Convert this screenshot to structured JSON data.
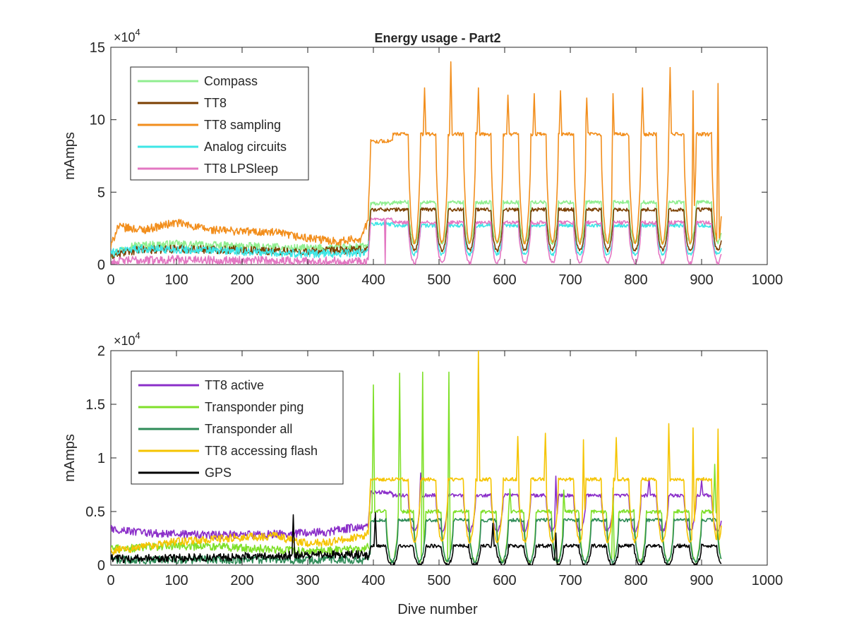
{
  "figure": {
    "title": "Energy usage - Part2",
    "xlabel": "Dive number"
  },
  "chart_data": [
    {
      "type": "line",
      "title": "Energy usage - Part2",
      "xlabel": "",
      "ylabel": "mAmps",
      "xlim": [
        0,
        1000
      ],
      "ylim": [
        0,
        150000
      ],
      "x_ticks": [
        "0",
        "100",
        "200",
        "300",
        "400",
        "500",
        "600",
        "700",
        "800",
        "900",
        "1000"
      ],
      "y_ticks": [
        "0",
        "5",
        "10",
        "15"
      ],
      "y_exponent": "4",
      "grid": false,
      "legend_position": "top-left",
      "series": [
        {
          "name": "Compass",
          "color": "#90ee90",
          "profile": {
            "x": [
              0,
              30,
              100,
              200,
              300,
              380,
              392,
              396,
              930
            ],
            "y": [
              7000,
              13000,
              14000,
              12500,
              11000,
              12000,
              12500,
              42000,
              45000
            ]
          },
          "oscillation": {
            "start": 396,
            "end": 930,
            "period": 42,
            "low": 15000,
            "high": 43000,
            "dip_start": 430
          }
        },
        {
          "name": "TT8",
          "color": "#7b3f00",
          "profile": {
            "x": [
              0,
              30,
              100,
              200,
              300,
              380,
              392,
              396,
              930
            ],
            "y": [
              6000,
              9500,
              11000,
              10000,
              9000,
              10000,
              11000,
              38000,
              38000
            ]
          },
          "oscillation": {
            "start": 396,
            "end": 930,
            "period": 42,
            "low": 10000,
            "high": 38000,
            "dip_start": 430
          }
        },
        {
          "name": "TT8 sampling",
          "color": "#f28e1c",
          "profile": {
            "x": [
              0,
              10,
              50,
              100,
              150,
              200,
              250,
              300,
              350,
              380,
              392,
              396,
              930
            ],
            "y": [
              12000,
              26000,
              24000,
              29000,
              24000,
              23000,
              22000,
              18000,
              16000,
              18000,
              30000,
              85000,
              90000
            ]
          },
          "oscillation": {
            "start": 396,
            "end": 930,
            "period": 42,
            "low": 15000,
            "high": 90000,
            "dip_start": 430
          },
          "peaks": [
            {
              "x": 478,
              "y": 122000
            },
            {
              "x": 518,
              "y": 140000
            },
            {
              "x": 560,
              "y": 122000
            },
            {
              "x": 605,
              "y": 117000
            },
            {
              "x": 645,
              "y": 118000
            },
            {
              "x": 685,
              "y": 120000
            },
            {
              "x": 725,
              "y": 115000
            },
            {
              "x": 765,
              "y": 118000
            },
            {
              "x": 810,
              "y": 122000
            },
            {
              "x": 852,
              "y": 136000
            },
            {
              "x": 887,
              "y": 120000
            },
            {
              "x": 925,
              "y": 125000
            }
          ]
        },
        {
          "name": "Analog circuits",
          "color": "#3de6e6",
          "profile": {
            "x": [
              0,
              30,
              100,
              200,
              300,
              380,
              392,
              396,
              930
            ],
            "y": [
              8000,
              11000,
              10500,
              9000,
              7500,
              8000,
              9000,
              28000,
              27000
            ]
          },
          "oscillation": {
            "start": 396,
            "end": 930,
            "period": 42,
            "low": 7000,
            "high": 27000,
            "dip_start": 430
          }
        },
        {
          "name": "TT8 LPSleep",
          "color": "#e377c2",
          "profile": {
            "x": [
              0,
              30,
              100,
              200,
              300,
              380,
              392,
              396,
              930
            ],
            "y": [
              1500,
              3000,
              3500,
              3000,
              2500,
              2500,
              3000,
              31000,
              29000
            ]
          },
          "oscillation": {
            "start": 396,
            "end": 930,
            "period": 42,
            "low": 1000,
            "high": 29000,
            "dip_start": 430
          },
          "peaks": [
            {
              "x": 423,
              "y": 32000
            }
          ],
          "drops": [
            {
              "x": 418,
              "y": 0
            }
          ]
        }
      ]
    },
    {
      "type": "line",
      "title": "",
      "xlabel": "Dive number",
      "ylabel": "mAmps",
      "xlim": [
        0,
        1000
      ],
      "ylim": [
        0,
        20000
      ],
      "x_ticks": [
        "0",
        "100",
        "200",
        "300",
        "400",
        "500",
        "600",
        "700",
        "800",
        "900",
        "1000"
      ],
      "y_ticks": [
        "0",
        "0.5",
        "1",
        "1.5",
        "2"
      ],
      "y_exponent": "4",
      "grid": false,
      "legend_position": "top-left",
      "series": [
        {
          "name": "TT8 active",
          "color": "#8b2fc9",
          "profile": {
            "x": [
              0,
              50,
              150,
              250,
              330,
              380,
              392,
              396,
              930
            ],
            "y": [
              3400,
              3000,
              2800,
              2900,
              3100,
              3600,
              3500,
              6800,
              6500
            ]
          },
          "oscillation": {
            "start": 396,
            "end": 930,
            "period": 42,
            "low": 3200,
            "high": 6500,
            "dip_start": 430
          },
          "peaks": [
            {
              "x": 472,
              "y": 8600
            },
            {
              "x": 678,
              "y": 8300
            },
            {
              "x": 820,
              "y": 8100
            },
            {
              "x": 900,
              "y": 7900
            }
          ]
        },
        {
          "name": "Transponder ping",
          "color": "#7fe02a",
          "profile": {
            "x": [
              0,
              100,
              200,
              300,
              380,
              392,
              396,
              930
            ],
            "y": [
              1500,
              1800,
              1600,
              1300,
              1500,
              1700,
              1000,
              1000
            ]
          },
          "oscillation": {
            "start": 396,
            "end": 930,
            "period": 42,
            "low": 300,
            "high": 5000,
            "dip_start": 396
          },
          "peaks": [
            {
              "x": 400,
              "y": 16800
            },
            {
              "x": 440,
              "y": 17900
            },
            {
              "x": 475,
              "y": 18000
            },
            {
              "x": 515,
              "y": 18000
            },
            {
              "x": 608,
              "y": 7100
            },
            {
              "x": 690,
              "y": 7000
            },
            {
              "x": 765,
              "y": 7200
            },
            {
              "x": 920,
              "y": 9400
            }
          ]
        },
        {
          "name": "Transponder all",
          "color": "#2e8b57",
          "profile": {
            "x": [
              0,
              392,
              396,
              930
            ],
            "y": [
              500,
              500,
              1500,
              1500
            ]
          },
          "oscillation": {
            "start": 396,
            "end": 930,
            "period": 42,
            "low": 300,
            "high": 4200,
            "dip_start": 396
          }
        },
        {
          "name": "TT8 accessing flash",
          "color": "#f5c400",
          "profile": {
            "x": [
              0,
              50,
              100,
              150,
              200,
              250,
              300,
              350,
              380,
              392,
              396,
              930
            ],
            "y": [
              1300,
              1700,
              2200,
              2400,
              2600,
              2700,
              2000,
              2300,
              2700,
              2900,
              8000,
              8000
            ]
          },
          "oscillation": {
            "start": 396,
            "end": 930,
            "period": 42,
            "low": 2200,
            "high": 8000,
            "dip_start": 430
          },
          "peaks": [
            {
              "x": 560,
              "y": 20000
            },
            {
              "x": 620,
              "y": 12000
            },
            {
              "x": 662,
              "y": 12300
            },
            {
              "x": 720,
              "y": 11700
            },
            {
              "x": 770,
              "y": 11900
            },
            {
              "x": 850,
              "y": 13200
            },
            {
              "x": 887,
              "y": 12800
            },
            {
              "x": 925,
              "y": 12700
            }
          ]
        },
        {
          "name": "GPS",
          "color": "#000000",
          "profile": {
            "x": [
              0,
              150,
              250,
              380,
              392,
              396,
              930
            ],
            "y": [
              600,
              700,
              900,
              1000,
              900,
              1500,
              600
            ]
          },
          "oscillation": {
            "start": 396,
            "end": 930,
            "period": 42,
            "low": 0,
            "high": 1800,
            "dip_start": 396
          },
          "peaks": [
            {
              "x": 278,
              "y": 4700
            },
            {
              "x": 403,
              "y": 4900
            },
            {
              "x": 582,
              "y": 3900
            },
            {
              "x": 678,
              "y": 3000
            }
          ]
        }
      ]
    }
  ]
}
